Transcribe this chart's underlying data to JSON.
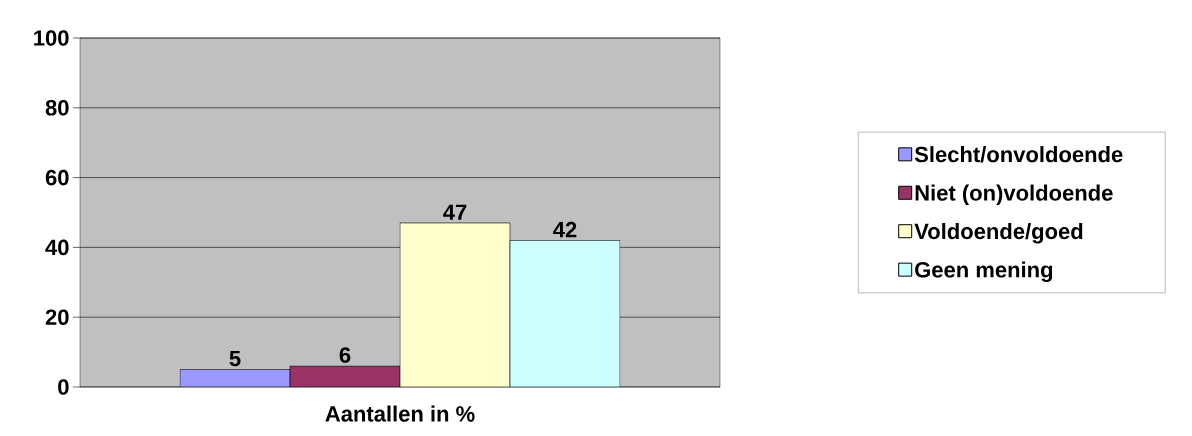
{
  "chart_data": {
    "type": "bar",
    "categories": [
      "Aantallen in %"
    ],
    "series": [
      {
        "name": "Slecht/onvoldoende",
        "color": "#9999ff",
        "values": [
          5
        ]
      },
      {
        "name": "Niet (on)voldoende",
        "color": "#993366",
        "values": [
          6
        ]
      },
      {
        "name": "Voldoende/goed",
        "color": "#ffffcc",
        "values": [
          47
        ]
      },
      {
        "name": "Geen mening",
        "color": "#ccffff",
        "values": [
          42
        ]
      }
    ],
    "ylim": [
      0,
      100
    ],
    "yticks": [
      0,
      20,
      40,
      60,
      80,
      100
    ],
    "grid": "y",
    "legend": "right",
    "data_labels": true
  }
}
